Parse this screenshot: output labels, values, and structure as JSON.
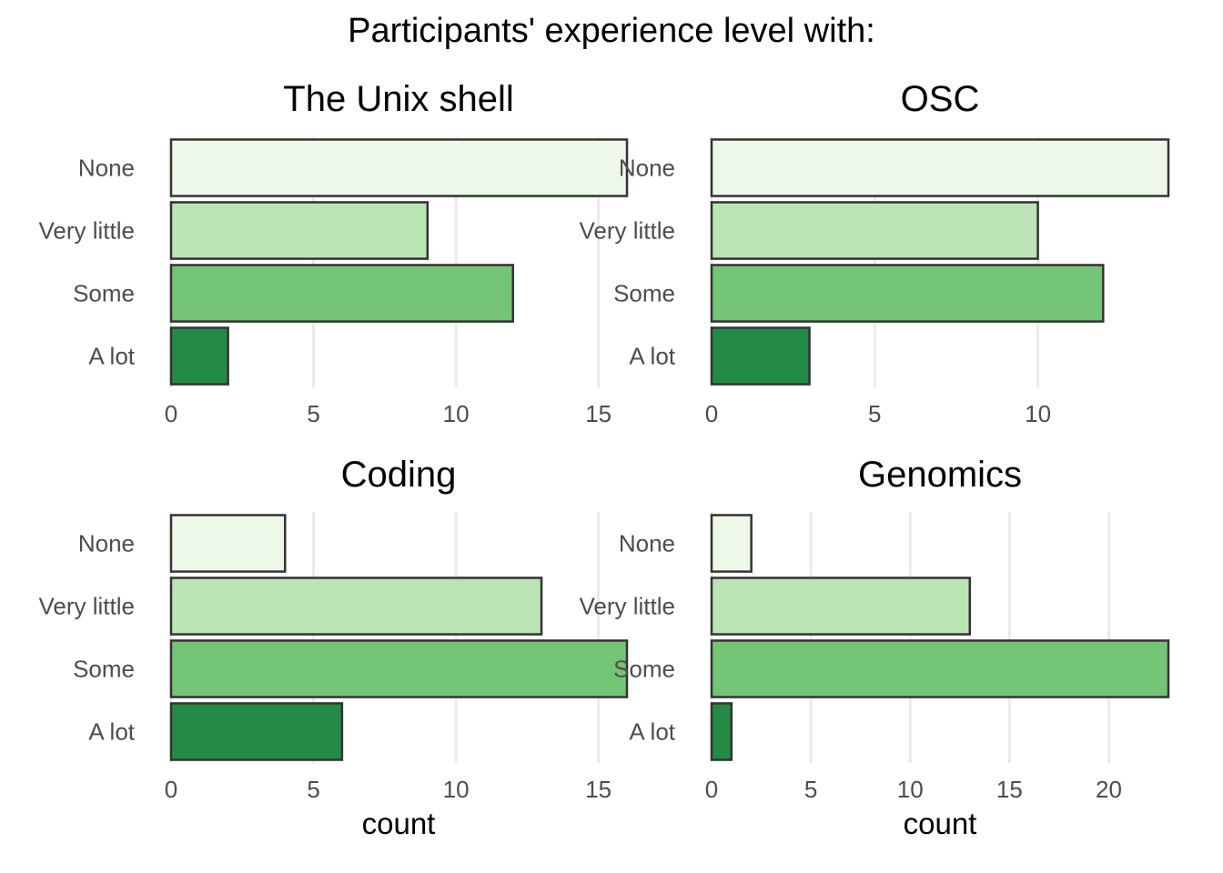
{
  "title": "Participants' experience level with:",
  "chart_data": [
    {
      "type": "bar",
      "orientation": "horizontal",
      "title": "The Unix shell",
      "categories": [
        "None",
        "Very little",
        "Some",
        "A lot"
      ],
      "values": [
        16,
        9,
        12,
        2
      ],
      "xlabel": "",
      "xlim": [
        0,
        16
      ],
      "xticks": [
        0,
        5,
        10,
        15
      ],
      "grid": true,
      "colors": [
        "#edf8e9",
        "#bae4b3",
        "#74c476",
        "#238b45"
      ]
    },
    {
      "type": "bar",
      "orientation": "horizontal",
      "title": "OSC",
      "categories": [
        "None",
        "Very little",
        "Some",
        "A lot"
      ],
      "values": [
        14,
        10,
        12,
        3
      ],
      "xlabel": "",
      "xlim": [
        0,
        14
      ],
      "xticks": [
        0,
        5,
        10
      ],
      "grid": true,
      "colors": [
        "#edf8e9",
        "#bae4b3",
        "#74c476",
        "#238b45"
      ]
    },
    {
      "type": "bar",
      "orientation": "horizontal",
      "title": "Coding",
      "categories": [
        "None",
        "Very little",
        "Some",
        "A lot"
      ],
      "values": [
        4,
        13,
        16,
        6
      ],
      "xlabel": "count",
      "xlim": [
        0,
        16
      ],
      "xticks": [
        0,
        5,
        10,
        15
      ],
      "grid": true,
      "colors": [
        "#edf8e9",
        "#bae4b3",
        "#74c476",
        "#238b45"
      ]
    },
    {
      "type": "bar",
      "orientation": "horizontal",
      "title": "Genomics",
      "categories": [
        "None",
        "Very little",
        "Some",
        "A lot"
      ],
      "values": [
        2,
        13,
        23,
        1
      ],
      "xlabel": "count",
      "xlim": [
        0,
        23
      ],
      "xticks": [
        0,
        5,
        10,
        15,
        20
      ],
      "grid": true,
      "colors": [
        "#edf8e9",
        "#bae4b3",
        "#74c476",
        "#238b45"
      ]
    }
  ]
}
